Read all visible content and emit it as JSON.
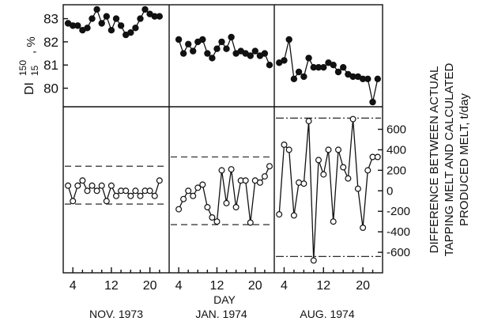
{
  "chart_data": {
    "type": "line",
    "xlabel": "DAY",
    "panel_labels": [
      "NOV. 1973",
      "JAN. 1974",
      "AUG. 1974"
    ],
    "x_ticks": [
      4,
      12,
      20
    ],
    "xlim": [
      2,
      24
    ],
    "top": {
      "ylabel": {
        "main": "DI",
        "sup": "150",
        "sub": "15",
        "unit": ", %"
      },
      "ylim": [
        79.2,
        83.6
      ],
      "yticks": [
        "83",
        "82",
        "81",
        "80"
      ],
      "yticks_values": [
        83,
        82,
        81,
        80
      ],
      "marker": "filled-circle",
      "panels": [
        {
          "x": [
            3,
            4,
            5,
            6,
            7,
            8,
            9,
            10,
            11,
            12,
            13,
            14,
            15,
            16,
            17,
            18,
            19,
            20,
            21,
            22
          ],
          "y": [
            82.8,
            82.7,
            82.7,
            82.5,
            82.6,
            83.0,
            83.4,
            82.8,
            83.1,
            82.5,
            83.0,
            82.7,
            82.3,
            82.4,
            82.6,
            83.0,
            83.4,
            83.2,
            83.1,
            83.1
          ]
        },
        {
          "x": [
            4,
            5,
            6,
            7,
            8,
            9,
            10,
            11,
            12,
            13,
            14,
            15,
            16,
            17,
            18,
            19,
            20,
            21,
            22,
            23
          ],
          "y": [
            82.1,
            81.5,
            81.9,
            81.6,
            82.0,
            82.1,
            81.5,
            81.3,
            81.7,
            82.0,
            81.7,
            82.2,
            81.5,
            81.6,
            81.5,
            81.4,
            81.6,
            81.4,
            81.5,
            81.0
          ]
        },
        {
          "x": [
            3,
            4,
            5,
            6,
            7,
            8,
            9,
            10,
            11,
            12,
            13,
            14,
            15,
            16,
            17,
            18,
            19,
            20,
            21,
            22,
            23
          ],
          "y": [
            81.1,
            81.2,
            82.1,
            80.4,
            80.7,
            80.5,
            81.3,
            80.9,
            80.9,
            80.9,
            81.1,
            81.0,
            80.7,
            80.9,
            80.6,
            80.5,
            80.5,
            80.4,
            80.4,
            79.4,
            80.4
          ]
        }
      ]
    },
    "bottom": {
      "ylabel_lines": [
        "DIFFERENCE BETWEEN ACTUAL",
        "TAPPING MELT AND CALCULATED",
        "PRODUCED MELT, t/day"
      ],
      "ylim": [
        -800,
        820
      ],
      "yticks": [
        "600",
        "400",
        "200",
        "0",
        "-200",
        "-400",
        "-600"
      ],
      "yticks_values": [
        600,
        400,
        200,
        0,
        -200,
        -400,
        -600
      ],
      "marker": "open-circle",
      "panels": [
        {
          "x": [
            3,
            4,
            5,
            6,
            7,
            8,
            9,
            10,
            11,
            12,
            13,
            14,
            15,
            16,
            17,
            18,
            19,
            20,
            21,
            22
          ],
          "y": [
            50,
            -100,
            50,
            100,
            0,
            50,
            0,
            50,
            -100,
            50,
            -50,
            0,
            0,
            -50,
            0,
            -50,
            0,
            0,
            -50,
            100
          ],
          "limits": [
            240,
            -130
          ]
        },
        {
          "x": [
            4,
            5,
            6,
            7,
            8,
            9,
            10,
            11,
            12,
            13,
            14,
            15,
            16,
            17,
            18,
            19,
            20,
            21,
            22,
            23
          ],
          "y": [
            -180,
            -80,
            0,
            -50,
            30,
            60,
            -160,
            -260,
            -300,
            200,
            -120,
            210,
            -160,
            100,
            100,
            -310,
            100,
            80,
            140,
            240
          ],
          "limits": [
            330,
            -330
          ]
        },
        {
          "x": [
            3,
            4,
            5,
            6,
            7,
            8,
            9,
            10,
            11,
            12,
            13,
            14,
            15,
            16,
            17,
            18,
            19,
            20,
            21,
            22,
            23
          ],
          "y": [
            -230,
            450,
            400,
            -240,
            80,
            70,
            680,
            -680,
            300,
            160,
            400,
            -300,
            400,
            230,
            120,
            700,
            20,
            -360,
            200,
            330,
            330
          ],
          "limits": [
            710,
            -640
          ]
        }
      ]
    }
  }
}
